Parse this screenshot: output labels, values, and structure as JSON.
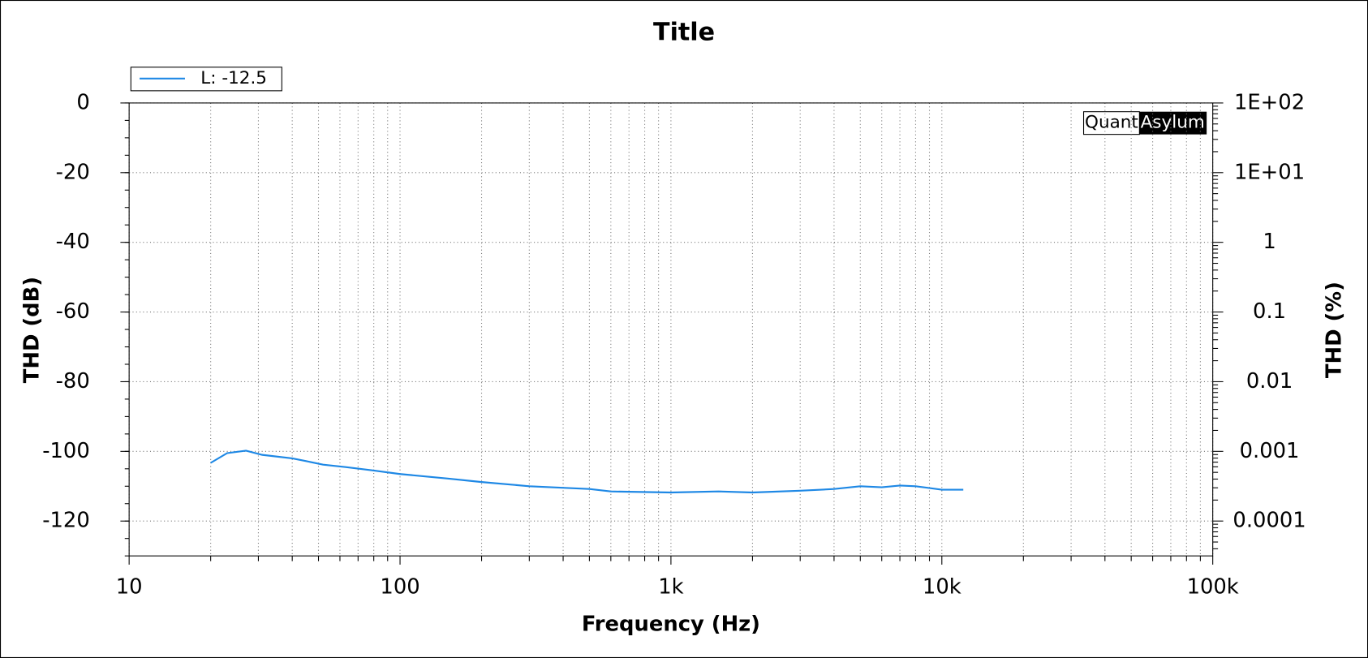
{
  "chart_data": {
    "type": "line",
    "title": "Title",
    "x_label": "Frequency (Hz)",
    "y_label": "THD (dB)",
    "y2_label": "THD (%)",
    "logo": [
      "Quant",
      "Asylum"
    ],
    "x_log": true,
    "y2_log": true,
    "grid": true,
    "minor_grid": true,
    "legend_position": "top-left",
    "xlim": [
      10,
      100000
    ],
    "xticks": [
      10,
      100,
      {
        "value": 1000,
        "label": "1k"
      },
      {
        "value": 10000,
        "label": "10k"
      },
      {
        "value": 100000,
        "label": "100k"
      }
    ],
    "ylim": [
      -130,
      0
    ],
    "yticks": [
      0,
      -20,
      -40,
      -60,
      -80,
      -100,
      -120
    ],
    "y2lim": [
      3.16e-05,
      100
    ],
    "y2ticks": [
      {
        "value": 100,
        "label": "1E+02"
      },
      {
        "value": 10,
        "label": "1E+01"
      },
      1,
      0.1,
      0.01,
      0.001,
      0.0001
    ],
    "x": [
      20,
      23,
      27,
      31,
      40,
      45,
      52,
      63,
      80,
      100,
      150,
      200,
      300,
      500,
      600,
      1000,
      1500,
      2000,
      3000,
      4000,
      5000,
      6000,
      7000,
      8000,
      10000,
      12000
    ],
    "series": [
      {
        "name": "L: -12.5",
        "color": "#1e88e5",
        "values": [
          -103.3,
          -100.5,
          -99.8,
          -101,
          -102,
          -102.8,
          -103.8,
          -104.5,
          -105.5,
          -106.5,
          -107.8,
          -108.8,
          -110,
          -110.8,
          -111.5,
          -111.8,
          -111.5,
          -111.8,
          -111.3,
          -110.8,
          -110,
          -110.3,
          -109.8,
          -110,
          -111,
          -111
        ]
      }
    ]
  }
}
